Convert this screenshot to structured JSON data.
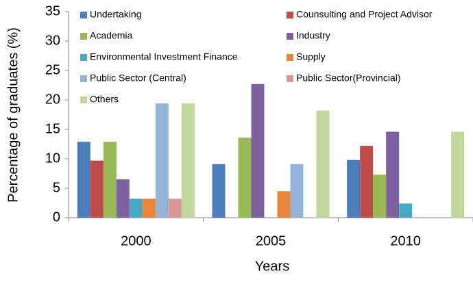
{
  "chart_data": {
    "type": "bar",
    "xlabel": "Years",
    "ylabel": "Percentage of graduates (%)",
    "categories": [
      "2000",
      "2005",
      "2010"
    ],
    "series": [
      {
        "name": "Undertaking",
        "color": "#4a7ebb",
        "values": [
          12.9,
          9.1,
          9.8
        ]
      },
      {
        "name": "Counsulting and Project Advisor",
        "color": "#be4b48",
        "values": [
          9.7,
          0,
          12.2
        ]
      },
      {
        "name": "Academia",
        "color": "#98b954",
        "values": [
          12.9,
          13.6,
          7.3
        ]
      },
      {
        "name": "Industry",
        "color": "#7d60a0",
        "values": [
          6.5,
          22.7,
          14.6
        ]
      },
      {
        "name": "Environmental Investment Finance",
        "color": "#46aac5",
        "values": [
          3.2,
          0,
          2.4
        ]
      },
      {
        "name": "Supply",
        "color": "#e8873a",
        "values": [
          3.2,
          4.5,
          0
        ]
      },
      {
        "name": "Public Sector (Central)",
        "color": "#95b3d7",
        "values": [
          19.4,
          9.1,
          0
        ]
      },
      {
        "name": "Public  Sector(Provincial)",
        "color": "#d99694",
        "values": [
          3.2,
          0,
          0
        ]
      },
      {
        "name": "Others",
        "color": "#c3d69b",
        "values": [
          19.4,
          18.2,
          14.6
        ]
      }
    ],
    "ylim": [
      0,
      35
    ],
    "yticks": [
      0,
      5,
      10,
      15,
      20,
      25,
      30,
      35
    ],
    "grid": false,
    "legend": "top"
  }
}
